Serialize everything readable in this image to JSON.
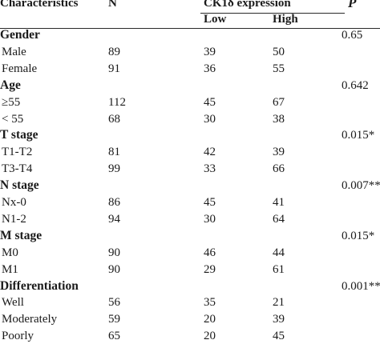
{
  "header": {
    "characteristics": "Characteristics",
    "n": "N",
    "expression": "CK1δ expression",
    "low": "Low",
    "high": "High",
    "p": "P"
  },
  "groups": [
    {
      "label": "Gender",
      "p": "0.65",
      "rows": [
        {
          "label": "Male",
          "n": "89",
          "low": "39",
          "high": "50"
        },
        {
          "label": "Female",
          "n": "91",
          "low": "36",
          "high": "55"
        }
      ]
    },
    {
      "label": "Age",
      "p": "0.642",
      "rows": [
        {
          "label": "≥55",
          "n": "112",
          "low": "45",
          "high": "67"
        },
        {
          "label": "< 55",
          "n": "68",
          "low": "30",
          "high": "38"
        }
      ]
    },
    {
      "label": "T stage",
      "p": "0.015*",
      "rows": [
        {
          "label": "T1-T2",
          "n": "81",
          "low": "42",
          "high": "39"
        },
        {
          "label": "T3-T4",
          "n": "99",
          "low": "33",
          "high": "66"
        }
      ]
    },
    {
      "label": "N stage",
      "p": "0.007**",
      "rows": [
        {
          "label": "Nx-0",
          "n": "86",
          "low": "45",
          "high": "41"
        },
        {
          "label": "N1-2",
          "n": "94",
          "low": "30",
          "high": "64"
        }
      ]
    },
    {
      "label": "M stage",
      "p": "0.015*",
      "rows": [
        {
          "label": "M0",
          "n": "90",
          "low": "46",
          "high": "44"
        },
        {
          "label": "M1",
          "n": "90",
          "low": "29",
          "high": "61"
        }
      ]
    },
    {
      "label": "Differentiation",
      "p": "0.001**",
      "rows": [
        {
          "label": "Well",
          "n": "56",
          "low": "35",
          "high": "21"
        },
        {
          "label": "Moderately",
          "n": "59",
          "low": "20",
          "high": "39"
        },
        {
          "label": "Poorly",
          "n": "65",
          "low": "20",
          "high": "45"
        }
      ]
    }
  ]
}
